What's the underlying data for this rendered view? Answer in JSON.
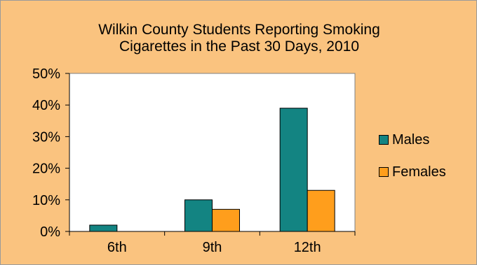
{
  "colors": {
    "background": "#fac37f",
    "plot_area": "#ffffff",
    "males": "#138482",
    "females": "#ff9e1c"
  },
  "chart_data": {
    "type": "bar",
    "title": [
      "Wilkin County Students Reporting Smoking",
      "Cigarettes in the Past 30 Days, 2010"
    ],
    "categories": [
      "6th",
      "9th",
      "12th"
    ],
    "series": [
      {
        "name": "Males",
        "values": [
          2,
          10,
          39
        ]
      },
      {
        "name": "Females",
        "values": [
          0,
          7,
          13
        ]
      }
    ],
    "ylim": [
      0,
      50
    ],
    "yticks": [
      "0%",
      "10%",
      "20%",
      "30%",
      "40%",
      "50%"
    ],
    "legend": "right",
    "grid": false
  }
}
